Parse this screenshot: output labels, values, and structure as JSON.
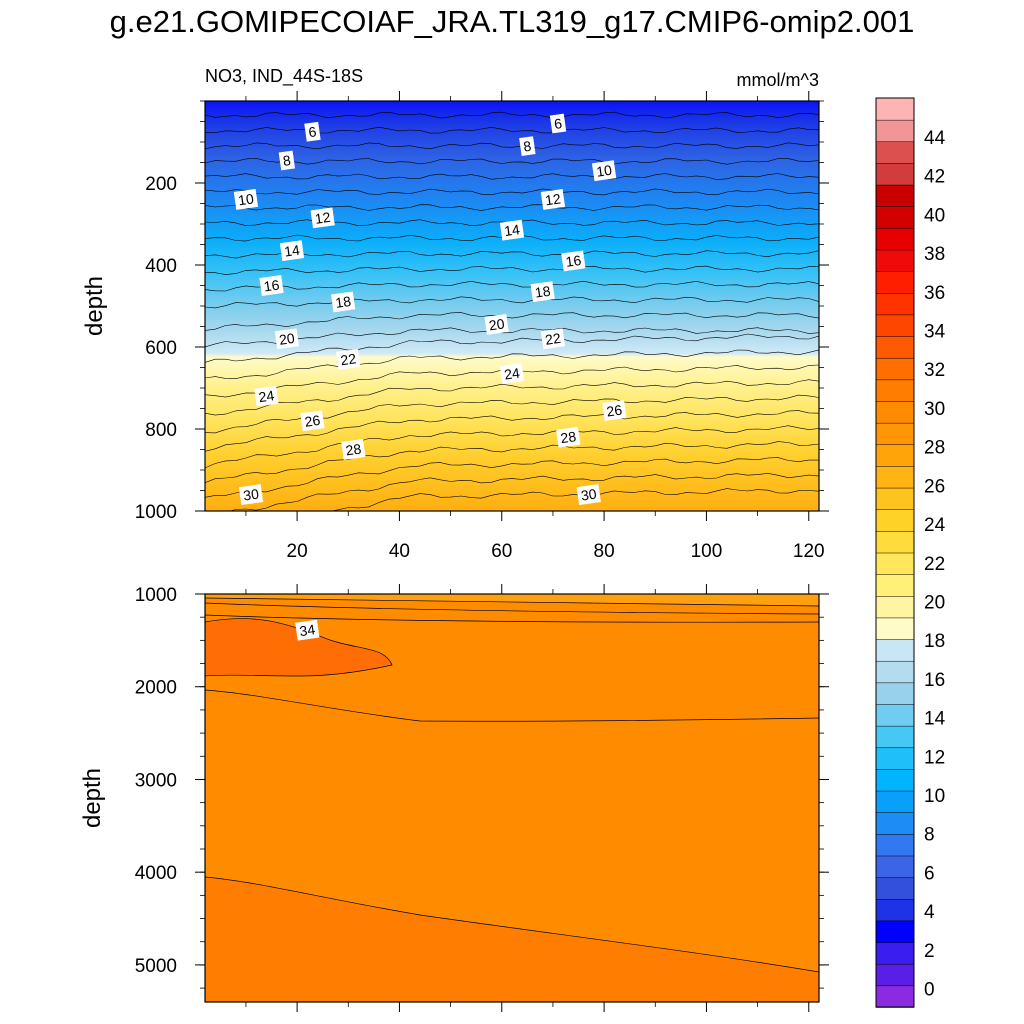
{
  "title": "g.e21.GOMIPECOIAF_JRA.TL319_g17.CMIP6-omip2.001",
  "chart_data": {
    "type": "heatmap",
    "variable": "NO3, IND_44S-18S",
    "units": "mmol/m^3",
    "x": {
      "ticks": [
        20,
        40,
        60,
        80,
        100,
        120
      ],
      "range": [
        2,
        122
      ]
    },
    "colorbar": {
      "levels": [
        0,
        2,
        4,
        6,
        8,
        10,
        12,
        14,
        16,
        18,
        20,
        22,
        24,
        26,
        28,
        30,
        32,
        34,
        36,
        38,
        40,
        42,
        44
      ],
      "colors": [
        "#8a2be2",
        "#5a1ee6",
        "#3a1ef0",
        "#0000ff",
        "#1e32e6",
        "#3250dc",
        "#3c64e6",
        "#3278f0",
        "#1e8cf5",
        "#0aa0fa",
        "#00b4ff",
        "#1ec0fa",
        "#46c8f5",
        "#6ecdf0",
        "#96d2eb",
        "#b4dcef",
        "#c8e6f5",
        "#fffbc8",
        "#fff5a0",
        "#fff078",
        "#ffe65a",
        "#ffdc3c",
        "#ffd228",
        "#ffc31e",
        "#ffb414",
        "#ffa50a",
        "#ff9605",
        "#ff8c00",
        "#ff7d00",
        "#ff6e00",
        "#ff5a00",
        "#ff4600",
        "#ff3200",
        "#ff1e00",
        "#f00a0a",
        "#e60000",
        "#d20000",
        "#c80000",
        "#d23c3c",
        "#dc5050",
        "#f09696",
        "#ffb4b4"
      ],
      "tick_labels": [
        "0",
        "2",
        "4",
        "6",
        "8",
        "10",
        "12",
        "14",
        "16",
        "18",
        "20",
        "22",
        "24",
        "26",
        "28",
        "30",
        "32",
        "34",
        "36",
        "38",
        "40",
        "42",
        "44"
      ]
    },
    "panels": [
      {
        "name": "upper",
        "ylabel": "depth",
        "ylim": [
          0,
          1000
        ],
        "yticks": [
          200,
          400,
          600,
          800,
          1000
        ],
        "x_ticklabels_shown": true,
        "contour_labels": [
          {
            "x": 23,
            "y": 75,
            "text": "6"
          },
          {
            "x": 71,
            "y": 55,
            "text": "6"
          },
          {
            "x": 18,
            "y": 145,
            "text": "8"
          },
          {
            "x": 65,
            "y": 110,
            "text": "8"
          },
          {
            "x": 80,
            "y": 170,
            "text": "10"
          },
          {
            "x": 10,
            "y": 240,
            "text": "10"
          },
          {
            "x": 70,
            "y": 240,
            "text": "12"
          },
          {
            "x": 25,
            "y": 285,
            "text": "12"
          },
          {
            "x": 62,
            "y": 315,
            "text": "14"
          },
          {
            "x": 19,
            "y": 365,
            "text": "14"
          },
          {
            "x": 74,
            "y": 390,
            "text": "16"
          },
          {
            "x": 15,
            "y": 450,
            "text": "16"
          },
          {
            "x": 68,
            "y": 465,
            "text": "18"
          },
          {
            "x": 29,
            "y": 490,
            "text": "18"
          },
          {
            "x": 59,
            "y": 545,
            "text": "20"
          },
          {
            "x": 18,
            "y": 580,
            "text": "20"
          },
          {
            "x": 70,
            "y": 580,
            "text": "22"
          },
          {
            "x": 30,
            "y": 630,
            "text": "22"
          },
          {
            "x": 62,
            "y": 665,
            "text": "24"
          },
          {
            "x": 14,
            "y": 720,
            "text": "24"
          },
          {
            "x": 82,
            "y": 755,
            "text": "26"
          },
          {
            "x": 23,
            "y": 780,
            "text": "26"
          },
          {
            "x": 73,
            "y": 820,
            "text": "28"
          },
          {
            "x": 31,
            "y": 850,
            "text": "28"
          },
          {
            "x": 11,
            "y": 960,
            "text": "30"
          },
          {
            "x": 77,
            "y": 960,
            "text": "30"
          }
        ]
      },
      {
        "name": "lower",
        "ylabel": "depth",
        "ylim": [
          1000,
          5400
        ],
        "yticks": [
          1000,
          2000,
          3000,
          4000,
          5000
        ],
        "x_ticklabels_shown": false,
        "contour_labels": [
          {
            "x": 22,
            "y": 1390,
            "text": "34"
          }
        ]
      }
    ]
  }
}
